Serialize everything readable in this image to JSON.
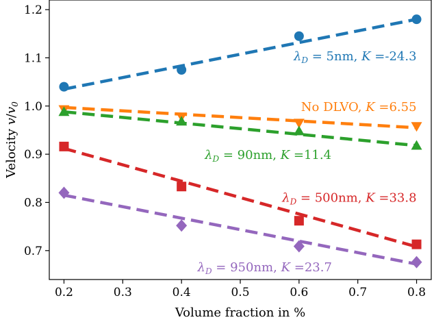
{
  "chart_data": {
    "type": "scatter",
    "xlabel": "Volume fraction in %",
    "ylabel_parts": [
      "Velocity ",
      "v",
      "/",
      "v",
      "0"
    ],
    "xlim": [
      0.175,
      0.825
    ],
    "ylim": [
      0.64,
      1.22
    ],
    "xticks": [
      0.2,
      0.3,
      0.4,
      0.5,
      0.6,
      0.7,
      0.8
    ],
    "xtick_labels": [
      "0.2",
      "0.3",
      "0.4",
      "0.5",
      "0.6",
      "0.7",
      "0.8"
    ],
    "yticks": [
      0.7,
      0.8,
      0.9,
      1.0,
      1.1,
      1.2
    ],
    "ytick_labels": [
      "0.7",
      "0.8",
      "0.9",
      "1.0",
      "1.1",
      "1.2"
    ],
    "grid": false,
    "legend": "none",
    "series": [
      {
        "id": "s5",
        "marker": "circle",
        "color": "#1f77b4",
        "x": [
          0.2,
          0.4,
          0.6,
          0.8
        ],
        "points": [
          1.04,
          1.075,
          1.145,
          1.18
        ],
        "fit": [
          1.035,
          1.18
        ],
        "label": {
          "parts": [
            "λ",
            "D",
            " = 5nm, ",
            "K",
            " =-24.3"
          ],
          "anchor": "end",
          "at": [
            0.8,
            1.095
          ]
        }
      },
      {
        "id": "snodlvo",
        "marker": "triangle-down",
        "color": "#ff7f0e",
        "x": [
          0.2,
          0.4,
          0.6,
          0.8
        ],
        "points": [
          0.993,
          0.978,
          0.965,
          0.958
        ],
        "fit": [
          0.997,
          0.955
        ],
        "label": {
          "parts": [
            "",
            "",
            "No DLVO, ",
            "K",
            " =6.55"
          ],
          "anchor": "end",
          "at": [
            0.8,
            0.99
          ]
        }
      },
      {
        "id": "s90",
        "marker": "triangle-up",
        "color": "#2ca02c",
        "x": [
          0.2,
          0.4,
          0.6,
          0.8
        ],
        "points": [
          0.988,
          0.968,
          0.948,
          0.918
        ],
        "fit": [
          0.988,
          0.918
        ],
        "label": {
          "parts": [
            "λ",
            "D",
            " = 90nm, ",
            "K",
            " =11.4"
          ],
          "anchor": "end",
          "at": [
            0.655,
            0.89
          ]
        }
      },
      {
        "id": "s500",
        "marker": "square",
        "color": "#d62728",
        "x": [
          0.2,
          0.4,
          0.6,
          0.8
        ],
        "points": [
          0.916,
          0.833,
          0.762,
          0.713
        ],
        "fit": [
          0.912,
          0.708
        ],
        "label": {
          "parts": [
            "λ",
            "D",
            " = 500nm, ",
            "K",
            " =33.8"
          ],
          "anchor": "end",
          "at": [
            0.8,
            0.801
          ]
        }
      },
      {
        "id": "s950",
        "marker": "diamond",
        "color": "#9467bd",
        "x": [
          0.2,
          0.4,
          0.6,
          0.8
        ],
        "points": [
          0.82,
          0.752,
          0.709,
          0.676
        ],
        "fit": [
          0.815,
          0.672
        ],
        "label": {
          "parts": [
            "λ",
            "D",
            " = 950nm, ",
            "K",
            " =23.7"
          ],
          "anchor": "end",
          "at": [
            0.656,
            0.657
          ]
        }
      }
    ]
  }
}
